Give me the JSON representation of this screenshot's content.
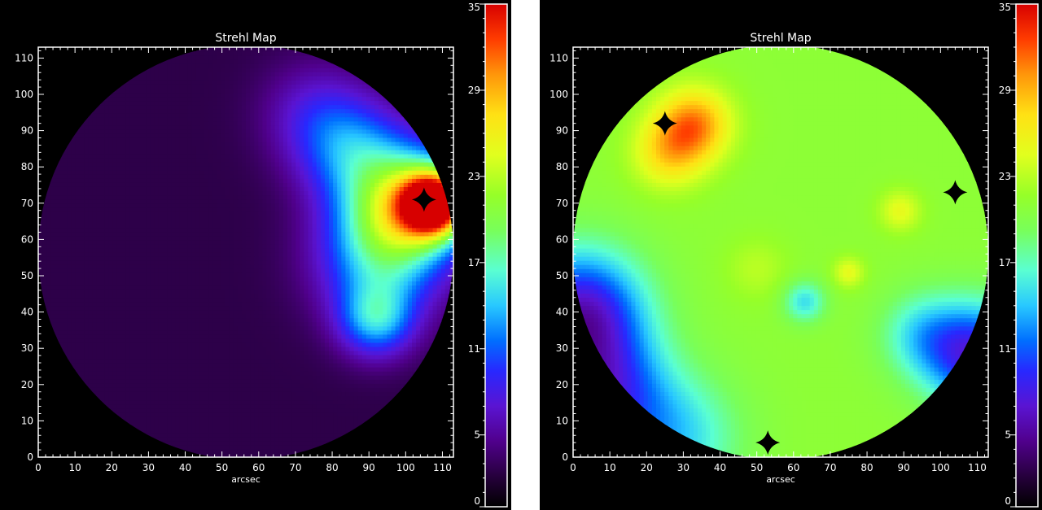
{
  "chart_data": [
    {
      "type": "heatmap",
      "title": "Strehl Map",
      "xlabel": "arcsec",
      "ylabel": "",
      "xlim": [
        0,
        113
      ],
      "ylim": [
        0,
        113
      ],
      "x_ticks": [
        0,
        10,
        20,
        30,
        40,
        50,
        60,
        70,
        80,
        90,
        100,
        110
      ],
      "y_ticks": [
        0,
        10,
        20,
        30,
        40,
        50,
        60,
        70,
        80,
        90,
        100,
        110
      ],
      "colorbar": {
        "min": 0,
        "max": 35,
        "ticks": [
          0,
          5,
          11,
          17,
          23,
          29,
          35
        ]
      },
      "field": {
        "shape": "circle",
        "center": [
          56.5,
          56.5
        ],
        "radius": 56.5
      },
      "background_value": 2.5,
      "blobs": [
        {
          "x": 108,
          "y": 70,
          "value": 30,
          "sigma": 6
        },
        {
          "x": 100,
          "y": 70,
          "value": 19,
          "sigma": 11
        },
        {
          "x": 93,
          "y": 55,
          "value": 10,
          "sigma": 12
        },
        {
          "x": 92,
          "y": 38,
          "value": 10,
          "sigma": 7
        },
        {
          "x": 85,
          "y": 85,
          "value": 8,
          "sigma": 10
        },
        {
          "x": 75,
          "y": 95,
          "value": 4,
          "sigma": 10
        }
      ],
      "stars": [
        {
          "x": 105,
          "y": 71
        }
      ]
    },
    {
      "type": "heatmap",
      "title": "Strehl Map",
      "xlabel": "arcsec",
      "ylabel": "",
      "xlim": [
        0,
        113
      ],
      "ylim": [
        0,
        113
      ],
      "x_ticks": [
        0,
        10,
        20,
        30,
        40,
        50,
        60,
        70,
        80,
        90,
        100,
        110
      ],
      "y_ticks": [
        0,
        10,
        20,
        30,
        40,
        50,
        60,
        70,
        80,
        90,
        100,
        110
      ],
      "colorbar": {
        "min": 0,
        "max": 35,
        "ticks": [
          0,
          5,
          11,
          17,
          23,
          29,
          35
        ]
      },
      "field": {
        "shape": "circle",
        "center": [
          56.5,
          56.5
        ],
        "radius": 56.5
      },
      "background_value": 21,
      "blobs": [
        {
          "x": 33,
          "y": 92,
          "value": 9,
          "sigma": 7
        },
        {
          "x": 26,
          "y": 84,
          "value": 6,
          "sigma": 7
        },
        {
          "x": 89,
          "y": 68,
          "value": 4,
          "sigma": 4
        },
        {
          "x": 75,
          "y": 51,
          "value": 4,
          "sigma": 3
        },
        {
          "x": 50,
          "y": 52,
          "value": 2,
          "sigma": 6
        },
        {
          "x": 63,
          "y": 43,
          "value": -6,
          "sigma": 4
        },
        {
          "x": 2,
          "y": 40,
          "value": -14,
          "sigma": 12
        },
        {
          "x": 8,
          "y": 18,
          "value": -11,
          "sigma": 12
        },
        {
          "x": 110,
          "y": 28,
          "value": -13,
          "sigma": 10
        },
        {
          "x": 95,
          "y": 34,
          "value": -5,
          "sigma": 8
        },
        {
          "x": 28,
          "y": 5,
          "value": -6,
          "sigma": 12
        }
      ],
      "stars": [
        {
          "x": 25,
          "y": 92
        },
        {
          "x": 104,
          "y": 73
        },
        {
          "x": 53,
          "y": 4
        }
      ]
    }
  ]
}
